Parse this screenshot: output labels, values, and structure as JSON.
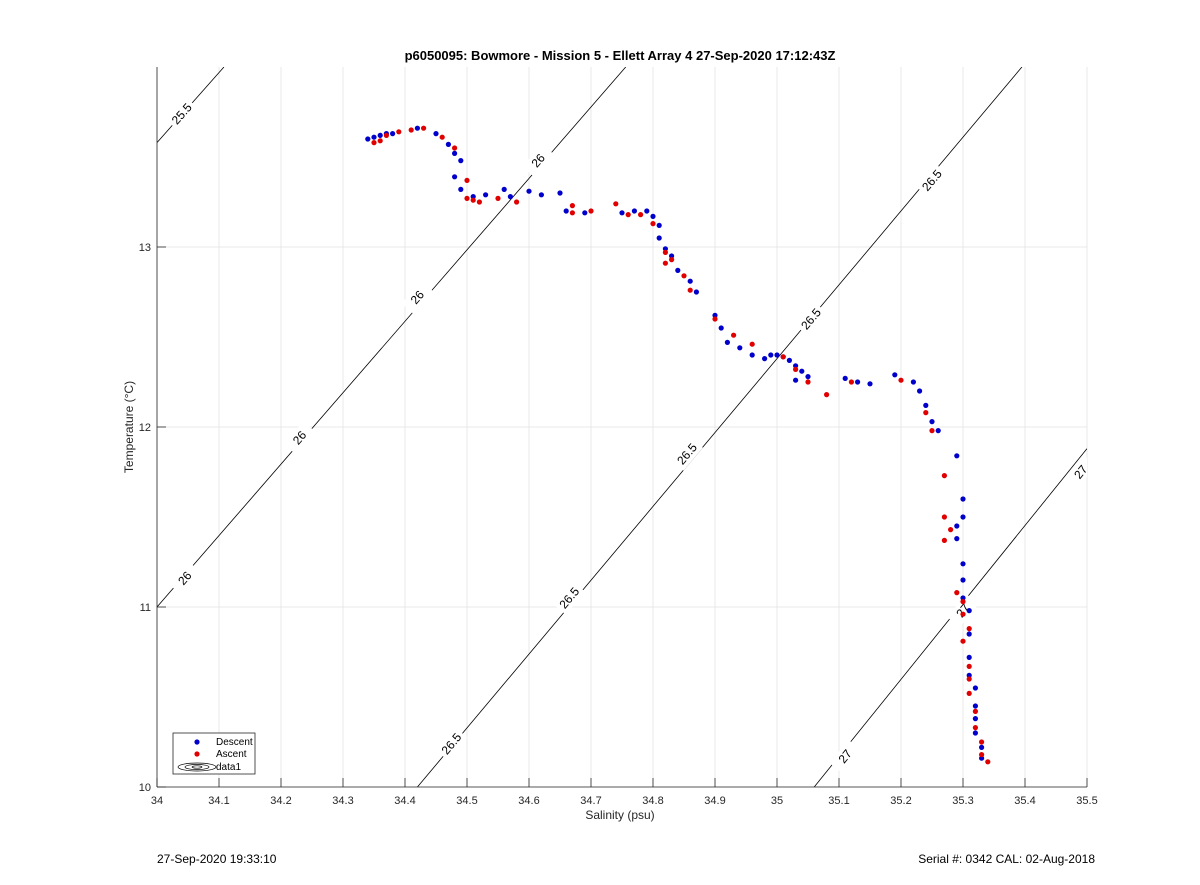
{
  "chart_data": {
    "type": "scatter",
    "title": "p6050095: Bowmore - Mission 5 - Ellett Array 4 27-Sep-2020 17:12:43Z",
    "xlabel": "Salinity (psu)",
    "ylabel": "Temperature (°C)",
    "xlim": [
      34,
      35.5
    ],
    "ylim": [
      10,
      14
    ],
    "xticks": [
      "34",
      "34.1",
      "34.2",
      "34.3",
      "34.4",
      "34.5",
      "34.6",
      "34.7",
      "34.8",
      "34.9",
      "35",
      "35.1",
      "35.2",
      "35.3",
      "35.4",
      "35.5"
    ],
    "yticks": [
      "10",
      "11",
      "12",
      "13"
    ],
    "grid": true,
    "legend_position": "bottom-left",
    "legend": [
      "Descent",
      "Ascent",
      "data1"
    ],
    "colors": {
      "descent": "#0000cc",
      "ascent": "#e00000",
      "contour": "#000000",
      "grid": "#e3e3e3"
    },
    "contours": [
      {
        "level": "25.5",
        "points": [
          [
            34.0,
            13.58
          ],
          [
            34.108,
            14.0
          ]
        ]
      },
      {
        "level": "26",
        "points": [
          [
            34.0,
            11.0
          ],
          [
            34.756,
            14.0
          ]
        ]
      },
      {
        "level": "26.5",
        "points": [
          [
            34.42,
            10.0
          ],
          [
            35.395,
            14.0
          ]
        ]
      },
      {
        "level": "27",
        "points": [
          [
            35.06,
            10.0
          ],
          [
            35.5,
            11.88
          ]
        ]
      }
    ],
    "contour_labels": [
      {
        "text": "25.5",
        "x": 34.04,
        "y": 13.74
      },
      {
        "text": "26",
        "x": 34.045,
        "y": 11.16
      },
      {
        "text": "26",
        "x": 34.23,
        "y": 11.94
      },
      {
        "text": "26",
        "x": 34.42,
        "y": 12.72
      },
      {
        "text": "26",
        "x": 34.615,
        "y": 13.48
      },
      {
        "text": "26.5",
        "x": 34.475,
        "y": 10.24
      },
      {
        "text": "26.5",
        "x": 34.665,
        "y": 11.05
      },
      {
        "text": "26.5",
        "x": 34.855,
        "y": 11.85
      },
      {
        "text": "26.5",
        "x": 35.055,
        "y": 12.6
      },
      {
        "text": "26.5",
        "x": 35.25,
        "y": 13.37
      },
      {
        "text": "27",
        "x": 35.11,
        "y": 10.17
      },
      {
        "text": "27",
        "x": 35.3,
        "y": 10.98
      },
      {
        "text": "27",
        "x": 35.49,
        "y": 11.75
      }
    ],
    "series": [
      {
        "name": "Descent",
        "points": [
          [
            34.34,
            13.6
          ],
          [
            34.35,
            13.61
          ],
          [
            34.36,
            13.62
          ],
          [
            34.37,
            13.63
          ],
          [
            34.38,
            13.63
          ],
          [
            34.42,
            13.66
          ],
          [
            34.45,
            13.63
          ],
          [
            34.47,
            13.57
          ],
          [
            34.48,
            13.52
          ],
          [
            34.49,
            13.48
          ],
          [
            34.48,
            13.39
          ],
          [
            34.49,
            13.32
          ],
          [
            34.51,
            13.28
          ],
          [
            34.53,
            13.29
          ],
          [
            34.56,
            13.32
          ],
          [
            34.57,
            13.28
          ],
          [
            34.6,
            13.31
          ],
          [
            34.62,
            13.29
          ],
          [
            34.65,
            13.3
          ],
          [
            34.66,
            13.2
          ],
          [
            34.69,
            13.19
          ],
          [
            34.75,
            13.19
          ],
          [
            34.77,
            13.2
          ],
          [
            34.79,
            13.2
          ],
          [
            34.8,
            13.17
          ],
          [
            34.81,
            13.12
          ],
          [
            34.81,
            13.05
          ],
          [
            34.82,
            12.99
          ],
          [
            34.83,
            12.95
          ],
          [
            34.84,
            12.87
          ],
          [
            34.86,
            12.81
          ],
          [
            34.87,
            12.75
          ],
          [
            34.9,
            12.62
          ],
          [
            34.91,
            12.55
          ],
          [
            34.92,
            12.47
          ],
          [
            34.94,
            12.44
          ],
          [
            34.96,
            12.4
          ],
          [
            34.98,
            12.38
          ],
          [
            34.99,
            12.4
          ],
          [
            35.0,
            12.4
          ],
          [
            35.01,
            12.39
          ],
          [
            35.02,
            12.37
          ],
          [
            35.03,
            12.34
          ],
          [
            35.04,
            12.31
          ],
          [
            35.05,
            12.28
          ],
          [
            35.03,
            12.26
          ],
          [
            35.11,
            12.27
          ],
          [
            35.13,
            12.25
          ],
          [
            35.15,
            12.24
          ],
          [
            35.19,
            12.29
          ],
          [
            35.22,
            12.25
          ],
          [
            35.23,
            12.2
          ],
          [
            35.24,
            12.12
          ],
          [
            35.25,
            12.03
          ],
          [
            35.26,
            11.98
          ],
          [
            35.29,
            11.84
          ],
          [
            35.3,
            11.6
          ],
          [
            35.3,
            11.5
          ],
          [
            35.29,
            11.45
          ],
          [
            35.29,
            11.38
          ],
          [
            35.3,
            11.24
          ],
          [
            35.3,
            11.15
          ],
          [
            35.3,
            11.05
          ],
          [
            35.31,
            10.98
          ],
          [
            35.31,
            10.85
          ],
          [
            35.31,
            10.72
          ],
          [
            35.31,
            10.62
          ],
          [
            35.32,
            10.55
          ],
          [
            35.32,
            10.45
          ],
          [
            35.32,
            10.38
          ],
          [
            35.32,
            10.3
          ],
          [
            35.33,
            10.22
          ],
          [
            35.33,
            10.16
          ]
        ]
      },
      {
        "name": "Ascent",
        "points": [
          [
            34.35,
            13.58
          ],
          [
            34.36,
            13.59
          ],
          [
            34.37,
            13.62
          ],
          [
            34.39,
            13.64
          ],
          [
            34.41,
            13.65
          ],
          [
            34.43,
            13.66
          ],
          [
            34.46,
            13.61
          ],
          [
            34.48,
            13.55
          ],
          [
            34.5,
            13.37
          ],
          [
            34.5,
            13.27
          ],
          [
            34.51,
            13.26
          ],
          [
            34.52,
            13.25
          ],
          [
            34.55,
            13.27
          ],
          [
            34.58,
            13.25
          ],
          [
            34.67,
            13.23
          ],
          [
            34.67,
            13.19
          ],
          [
            34.7,
            13.2
          ],
          [
            34.74,
            13.24
          ],
          [
            34.76,
            13.18
          ],
          [
            34.78,
            13.18
          ],
          [
            34.8,
            13.13
          ],
          [
            34.82,
            12.97
          ],
          [
            34.82,
            12.91
          ],
          [
            34.83,
            12.93
          ],
          [
            34.85,
            12.84
          ],
          [
            34.86,
            12.76
          ],
          [
            34.9,
            12.6
          ],
          [
            34.93,
            12.51
          ],
          [
            34.96,
            12.46
          ],
          [
            35.01,
            12.39
          ],
          [
            35.03,
            12.32
          ],
          [
            35.05,
            12.25
          ],
          [
            35.08,
            12.18
          ],
          [
            35.12,
            12.25
          ],
          [
            35.2,
            12.26
          ],
          [
            35.24,
            12.08
          ],
          [
            35.25,
            11.98
          ],
          [
            35.27,
            11.73
          ],
          [
            35.27,
            11.5
          ],
          [
            35.28,
            11.43
          ],
          [
            35.27,
            11.37
          ],
          [
            35.29,
            11.08
          ],
          [
            35.3,
            11.03
          ],
          [
            35.3,
            10.96
          ],
          [
            35.31,
            10.88
          ],
          [
            35.3,
            10.81
          ],
          [
            35.31,
            10.67
          ],
          [
            35.31,
            10.6
          ],
          [
            35.31,
            10.52
          ],
          [
            35.32,
            10.42
          ],
          [
            35.32,
            10.33
          ],
          [
            35.33,
            10.25
          ],
          [
            35.33,
            10.18
          ],
          [
            35.34,
            10.14
          ]
        ]
      }
    ]
  },
  "footer": {
    "timestamp": "27-Sep-2020 19:33:10",
    "serial": "Serial #: 0342  CAL: 02-Aug-2018"
  }
}
